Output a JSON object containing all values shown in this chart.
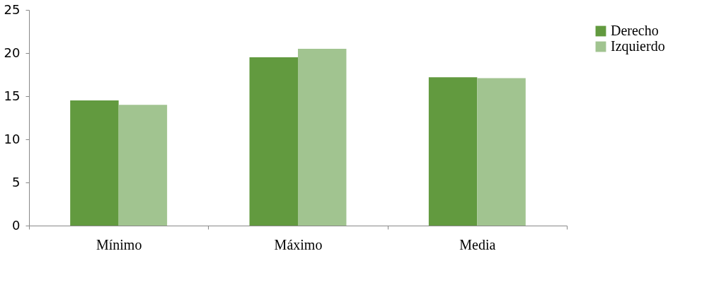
{
  "chart_data": {
    "type": "bar",
    "categories": [
      "Mínimo",
      "Máximo",
      "Media"
    ],
    "series": [
      {
        "name": "Derecho",
        "color": "#629a3f",
        "values": [
          14.5,
          19.5,
          17.2
        ]
      },
      {
        "name": "Izquierdo",
        "color": "#a1c490",
        "values": [
          14.0,
          20.5,
          17.1
        ]
      }
    ],
    "ylim": [
      0,
      25
    ],
    "yticks": [
      0,
      5,
      10,
      15,
      20,
      25
    ],
    "grid": false,
    "legend": "right"
  }
}
